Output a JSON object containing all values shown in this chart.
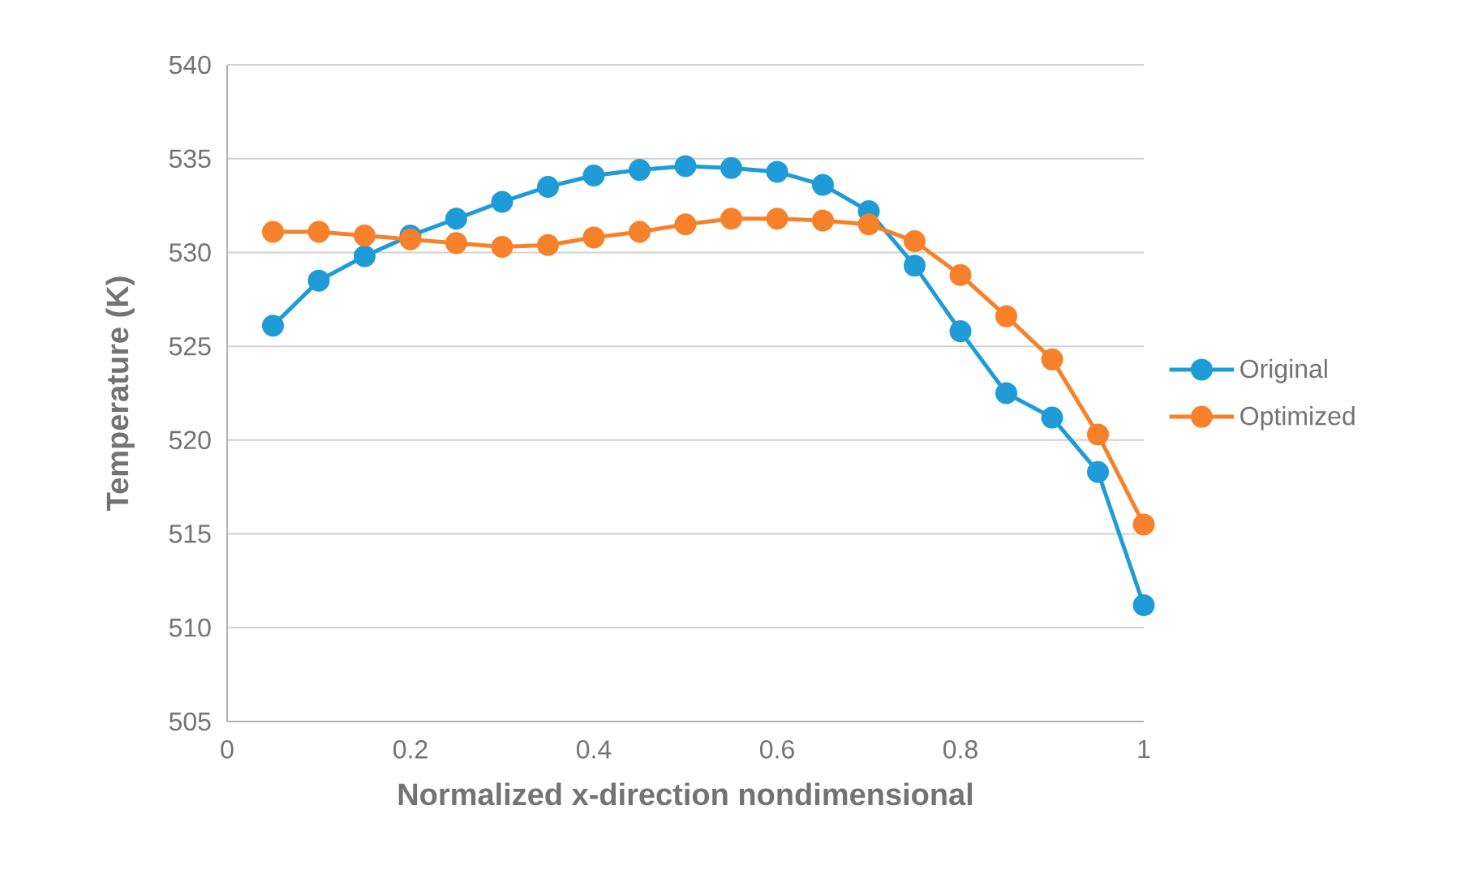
{
  "chart_data": {
    "type": "line",
    "xlabel": "Normalized x-direction nondimensional",
    "ylabel": "Temperature (K)",
    "x": [
      0.05,
      0.1,
      0.15,
      0.2,
      0.25,
      0.3,
      0.35,
      0.4,
      0.45,
      0.5,
      0.55,
      0.6,
      0.65,
      0.7,
      0.75,
      0.8,
      0.85,
      0.9,
      0.95,
      1
    ],
    "series": [
      {
        "name": "Original",
        "color": "#1f9bd7",
        "values": [
          526.1,
          528.5,
          529.8,
          530.9,
          531.8,
          532.7,
          533.5,
          534.1,
          534.4,
          534.6,
          534.5,
          534.3,
          533.6,
          532.2,
          529.3,
          525.8,
          522.5,
          521.2,
          518.3,
          511.2
        ]
      },
      {
        "name": "Optimized",
        "color": "#f7802a",
        "values": [
          531.1,
          531.1,
          530.9,
          530.7,
          530.5,
          530.3,
          530.4,
          530.8,
          531.1,
          531.5,
          531.8,
          531.8,
          531.7,
          531.5,
          530.6,
          528.8,
          526.6,
          524.3,
          520.3,
          515.5
        ]
      }
    ],
    "xlim": [
      0,
      1
    ],
    "xticks": [
      0,
      0.2,
      0.4,
      0.6,
      0.8,
      1
    ],
    "ylim": [
      505,
      540
    ],
    "yticks": [
      505,
      510,
      515,
      520,
      525,
      530,
      535,
      540
    ],
    "grid": "y",
    "legend": "right",
    "marker": "circle",
    "line_style": "solid"
  }
}
